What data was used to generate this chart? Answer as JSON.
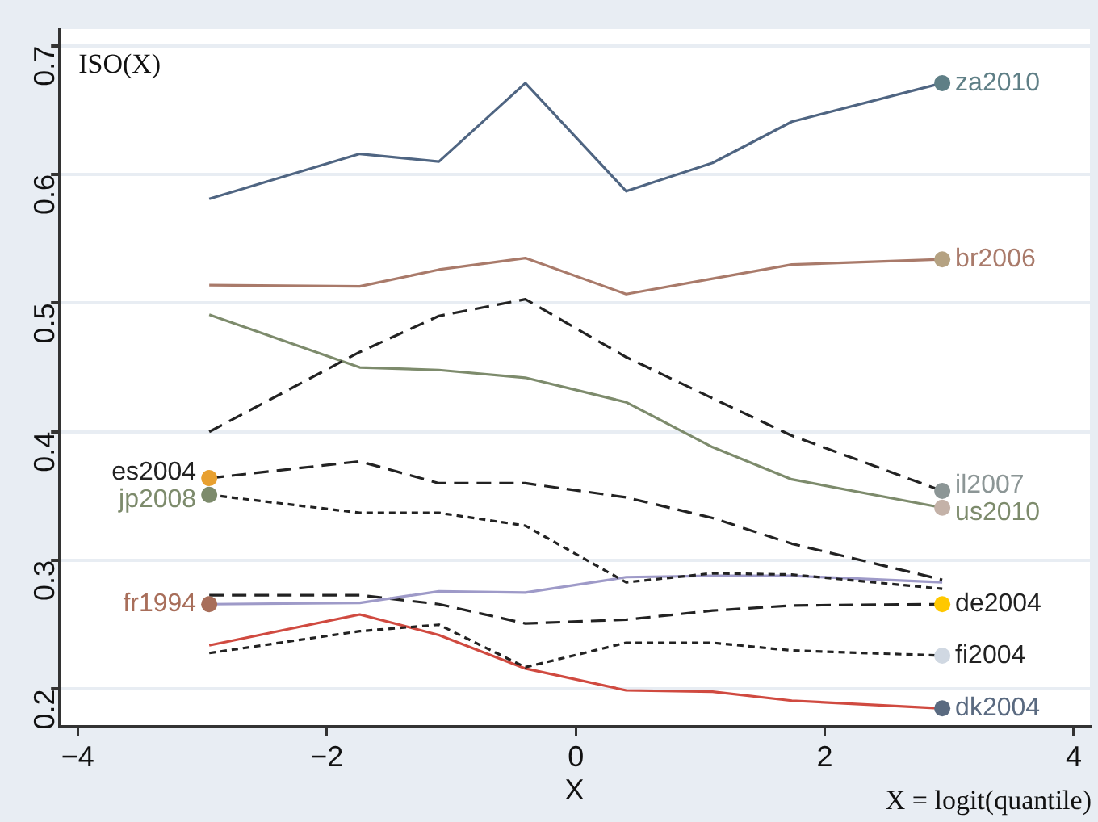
{
  "chart_data": {
    "type": "line",
    "ylabel": "ISO(X)",
    "xlabel": "X",
    "annotations": [
      "X = logit(quantile)"
    ],
    "x": [
      -2.944,
      -1.735,
      -1.099,
      -0.405,
      0.405,
      1.099,
      1.735,
      2.944
    ],
    "xlim": [
      -4.15,
      4.13
    ],
    "xticks": [
      -4,
      -2,
      0,
      2,
      4
    ],
    "ylim": [
      0.171,
      0.713
    ],
    "yticks": [
      0.2,
      0.3,
      0.4,
      0.5,
      0.6,
      0.7
    ],
    "grid": "y",
    "legend": false,
    "series": [
      {
        "name": "za2010",
        "color": "#4f6582",
        "line_style": "solid",
        "values": [
          0.581,
          0.616,
          0.61,
          0.671,
          0.587,
          0.609,
          0.641,
          0.671
        ],
        "colors": [
          null,
          null,
          null,
          null,
          null,
          null,
          null,
          "#5f7f86"
        ]
      },
      {
        "name": "br2006",
        "color": "#a97a6a",
        "line_style": "solid",
        "values": [
          0.514,
          0.513,
          0.526,
          0.535,
          0.507,
          0.519,
          0.53,
          0.534
        ],
        "colors": [
          null,
          null,
          null,
          null,
          null,
          null,
          null,
          "#b5a282"
        ]
      },
      {
        "name": "il2007",
        "color": "#222222",
        "line_style": "dashed",
        "values": [
          0.4,
          0.462,
          0.49,
          0.503,
          0.458,
          0.426,
          0.397,
          0.354
        ],
        "colors": [
          null,
          null,
          null,
          null,
          null,
          null,
          null,
          "#8c9696"
        ]
      },
      {
        "name": "us2010",
        "color": "#7d8b6c",
        "line_style": "solid",
        "values": [
          0.491,
          0.45,
          0.448,
          0.442,
          0.423,
          0.388,
          0.363,
          0.341
        ],
        "colors": [
          null,
          null,
          null,
          null,
          null,
          null,
          null,
          "#c4b2a8"
        ]
      },
      {
        "name": "es2004",
        "color": "#222222",
        "line_style": "dashed",
        "values": [
          0.364,
          0.377,
          0.36,
          0.36,
          0.349,
          0.333,
          0.313,
          0.285
        ],
        "colors": [
          "#e8a030",
          null,
          null,
          null,
          null,
          null,
          null,
          null
        ]
      },
      {
        "name": "jp2008",
        "color": "#222222",
        "line_style": "dotted",
        "values": [
          0.351,
          0.337,
          0.337,
          0.327,
          0.283,
          0.29,
          0.289,
          0.278
        ],
        "colors": [
          "#7d8b6c",
          null,
          null,
          null,
          null,
          null,
          null,
          null
        ]
      },
      {
        "name": "fr1994",
        "color": "#9e9ac8",
        "line_style": "solid",
        "values": [
          0.266,
          0.267,
          0.276,
          0.275,
          0.287,
          0.288,
          0.288,
          0.283
        ],
        "colors": [
          "#a86e5a",
          null,
          null,
          null,
          null,
          null,
          null,
          null
        ]
      },
      {
        "name": "de2004",
        "color": "#222222",
        "line_style": "dashed",
        "values": [
          0.273,
          0.273,
          0.266,
          0.251,
          0.254,
          0.261,
          0.265,
          0.266
        ],
        "colors": [
          null,
          null,
          null,
          null,
          null,
          null,
          null,
          "#ffc800"
        ]
      },
      {
        "name": "fi2004",
        "color": "#222222",
        "line_style": "dotted",
        "values": [
          0.228,
          0.245,
          0.25,
          0.217,
          0.236,
          0.236,
          0.23,
          0.226
        ],
        "colors": [
          null,
          null,
          null,
          null,
          null,
          null,
          null,
          "#d0d8e2"
        ]
      },
      {
        "name": "dk2004",
        "color": "#d04a40",
        "line_style": "solid",
        "values": [
          0.234,
          0.258,
          0.242,
          0.216,
          0.199,
          0.198,
          0.191,
          0.185
        ],
        "colors": [
          null,
          null,
          null,
          null,
          null,
          null,
          null,
          "#5a6a80"
        ]
      }
    ]
  }
}
